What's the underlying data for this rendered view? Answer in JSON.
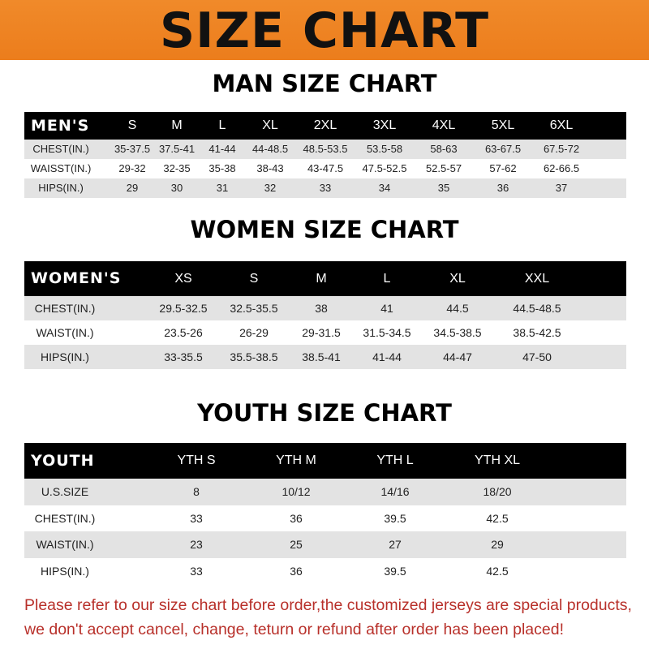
{
  "title": "SIZE CHART",
  "footer": [
    "Please refer to our size chart before order,the customized jerseys are special products,",
    "we don't accept cancel, change, teturn or refund after order has been placed!"
  ],
  "colors": {
    "banner": "#ec7d1c",
    "header_row": "#000000",
    "stripe": "#e3e3e3",
    "footer_text": "#b8302a"
  },
  "men": {
    "heading": "MAN SIZE CHART",
    "columns": [
      "MEN'S",
      "S",
      "M",
      "L",
      "XL",
      "2XL",
      "3XL",
      "4XL",
      "5XL",
      "6XL"
    ],
    "rows": [
      [
        "CHEST(IN.)",
        "35-37.5",
        "37.5-41",
        "41-44",
        "44-48.5",
        "48.5-53.5",
        "53.5-58",
        "58-63",
        "63-67.5",
        "67.5-72"
      ],
      [
        "WAISST(IN.)",
        "29-32",
        "32-35",
        "35-38",
        "38-43",
        "43-47.5",
        "47.5-52.5",
        "52.5-57",
        "57-62",
        "62-66.5"
      ],
      [
        "HIPS(IN.)",
        "29",
        "30",
        "31",
        "32",
        "33",
        "34",
        "35",
        "36",
        "37"
      ]
    ]
  },
  "women": {
    "heading": "WOMEN SIZE CHART",
    "columns": [
      "WOMEN'S",
      "XS",
      "S",
      "M",
      "L",
      "XL",
      "XXL"
    ],
    "rows": [
      [
        "CHEST(IN.)",
        "29.5-32.5",
        "32.5-35.5",
        "38",
        "41",
        "44.5",
        "44.5-48.5"
      ],
      [
        "WAIST(IN.)",
        "23.5-26",
        "26-29",
        "29-31.5",
        "31.5-34.5",
        "34.5-38.5",
        "38.5-42.5"
      ],
      [
        "HIPS(IN.)",
        "33-35.5",
        "35.5-38.5",
        "38.5-41",
        "41-44",
        "44-47",
        "47-50"
      ]
    ]
  },
  "youth": {
    "heading": "YOUTH SIZE CHART",
    "columns": [
      "YOUTH",
      "YTH S",
      "YTH M",
      "YTH L",
      "YTH XL"
    ],
    "rows": [
      [
        "U.S.SIZE",
        "8",
        "10/12",
        "14/16",
        "18/20"
      ],
      [
        "CHEST(IN.)",
        "33",
        "36",
        "39.5",
        "42.5"
      ],
      [
        "WAIST(IN.)",
        "23",
        "25",
        "27",
        "29"
      ],
      [
        "HIPS(IN.)",
        "33",
        "36",
        "39.5",
        "42.5"
      ]
    ]
  }
}
